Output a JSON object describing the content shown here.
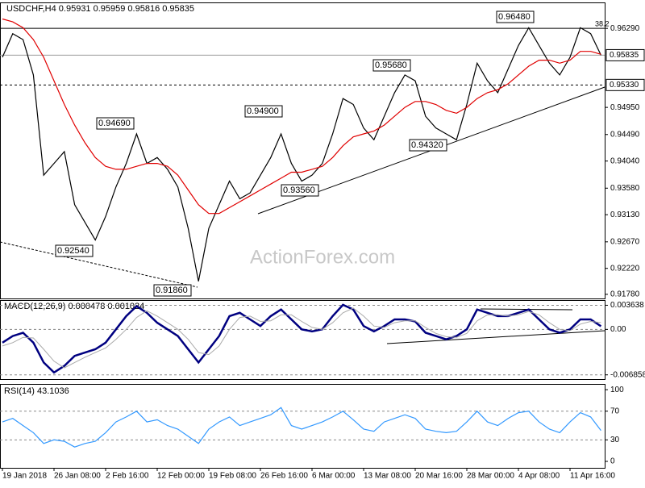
{
  "chart_data": [
    {
      "type": "line",
      "title": "USDCHF,H4 0.95931 0.95959 0.95816 0.95835",
      "watermark": "ActionForex.com",
      "categories": [
        "19 Jan 2018",
        null,
        null,
        null,
        null,
        "26 Jan 08:00",
        null,
        null,
        null,
        null,
        "2 Feb 16:00",
        null,
        null,
        null,
        null,
        "12 Feb 00:00",
        null,
        null,
        null,
        null,
        "19 Feb 08:00",
        null,
        null,
        null,
        null,
        "26 Feb 16:00",
        null,
        null,
        null,
        null,
        "6 Mar 00:00",
        null,
        null,
        null,
        null,
        "13 Mar 08:00",
        null,
        null,
        null,
        null,
        "20 Mar 16:00",
        null,
        null,
        null,
        null,
        "28 Mar 00:00",
        null,
        null,
        null,
        null,
        "4 Apr 08:00",
        null,
        null,
        null,
        null,
        "11 Apr 16:00",
        null,
        null,
        null
      ],
      "series": [
        {
          "color": "#000000",
          "values": [
            0.958,
            0.962,
            0.961,
            0.955,
            0.938,
            0.94,
            0.942,
            0.933,
            0.93,
            0.927,
            0.931,
            0.936,
            0.94,
            0.945,
            0.94,
            0.941,
            0.939,
            0.936,
            0.929,
            0.92,
            0.929,
            0.933,
            0.937,
            0.934,
            0.935,
            0.938,
            0.941,
            0.945,
            0.94,
            0.937,
            0.938,
            0.94,
            0.945,
            0.951,
            0.95,
            0.946,
            0.944,
            0.948,
            0.952,
            0.955,
            0.954,
            0.948,
            0.946,
            0.945,
            0.944,
            0.95,
            0.957,
            0.954,
            0.952,
            0.956,
            0.96,
            0.963,
            0.96,
            0.957,
            0.955,
            0.958,
            0.963,
            0.962,
            0.95835
          ]
        },
        {
          "color": "#e00000",
          "values": [
            0.9645,
            0.964,
            0.963,
            0.961,
            0.958,
            0.954,
            0.95,
            0.9465,
            0.9435,
            0.941,
            0.9395,
            0.939,
            0.939,
            0.9395,
            0.94,
            0.94,
            0.9395,
            0.938,
            0.9355,
            0.933,
            0.9315,
            0.9315,
            0.9325,
            0.9335,
            0.9345,
            0.9355,
            0.9365,
            0.9375,
            0.9385,
            0.9385,
            0.939,
            0.9395,
            0.941,
            0.943,
            0.9445,
            0.945,
            0.9455,
            0.9465,
            0.948,
            0.9495,
            0.9505,
            0.9505,
            0.95,
            0.949,
            0.9485,
            0.9495,
            0.951,
            0.952,
            0.9525,
            0.9535,
            0.955,
            0.9565,
            0.9575,
            0.9575,
            0.957,
            0.9575,
            0.959,
            0.959,
            0.9585
          ]
        }
      ],
      "ylim": [
        0.9171,
        0.9673
      ],
      "yticks": [
        {
          "value": 0.9629,
          "label": "0.96290"
        },
        {
          "value": 0.9495,
          "label": "0.94950"
        },
        {
          "value": 0.9449,
          "label": "0.94490"
        },
        {
          "value": 0.9404,
          "label": "0.94040"
        },
        {
          "value": 0.9358,
          "label": "0.93580"
        },
        {
          "value": 0.9313,
          "label": "0.93130"
        },
        {
          "value": 0.9267,
          "label": "0.92670"
        },
        {
          "value": 0.9222,
          "label": "0.92220"
        },
        {
          "value": 0.9178,
          "label": "0.91780"
        }
      ],
      "levels": [
        {
          "value": 0.95835,
          "label": "0.95835"
        },
        {
          "value": 0.9533,
          "label": "0.95330"
        }
      ],
      "annotations": [
        "0.96480",
        "0.95680",
        "0.94900",
        "0.94690",
        "0.94320",
        "0.93560",
        "0.92540",
        "0.91860",
        "38.2"
      ]
    },
    {
      "type": "line",
      "title": "MACD(12,26,9) 0.000478 0.001024",
      "series": [
        {
          "color": "#000080",
          "values": [
            -0.002,
            -0.001,
            -0.0005,
            -0.002,
            -0.005,
            -0.0065,
            -0.0055,
            -0.004,
            -0.0035,
            -0.003,
            -0.002,
            0.0,
            0.002,
            0.0035,
            0.0025,
            0.001,
            0.0,
            -0.001,
            -0.003,
            -0.005,
            -0.003,
            -0.001,
            0.002,
            0.0025,
            0.0015,
            0.0005,
            0.002,
            0.003,
            0.0015,
            0.0,
            -0.0003,
            0.0,
            0.002,
            0.0037,
            0.003,
            0.0005,
            -0.0003,
            0.0005,
            0.0015,
            0.0015,
            0.0012,
            -0.0005,
            -0.001,
            -0.0015,
            -0.001,
            0.0,
            0.003,
            0.0025,
            0.002,
            0.002,
            0.0025,
            0.003,
            0.0015,
            0.0,
            -0.0005,
            0.0,
            0.0015,
            0.0015,
            0.000478
          ]
        },
        {
          "color": "#aaaaaa",
          "values": [
            -0.0025,
            -0.002,
            -0.0012,
            -0.0013,
            -0.003,
            -0.0048,
            -0.0058,
            -0.005,
            -0.0042,
            -0.0035,
            -0.0028,
            -0.0015,
            0.0,
            0.0018,
            0.0028,
            0.002,
            0.001,
            0.0,
            -0.0015,
            -0.0035,
            -0.0038,
            -0.0025,
            0.0,
            0.0018,
            0.002,
            0.0012,
            0.0013,
            0.0022,
            0.0022,
            0.0012,
            0.0003,
            0.0,
            0.001,
            0.0025,
            0.0032,
            0.002,
            0.0005,
            0.0003,
            0.001,
            0.0013,
            0.0013,
            0.0003,
            -0.0006,
            -0.0011,
            -0.0012,
            -0.0006,
            0.0013,
            0.0022,
            0.0022,
            0.002,
            0.0022,
            0.0027,
            0.0022,
            0.001,
            0.0,
            -0.0002,
            0.0008,
            0.0012,
            0.001024
          ]
        }
      ],
      "ylim": [
        -0.0075,
        0.0043
      ],
      "yticks": [
        0.003638,
        {
          "value": 0,
          "label": "0.00"
        },
        -0.006858
      ]
    },
    {
      "type": "line",
      "title": "RSI(14) 43.1036",
      "series": [
        {
          "color": "#3399ff",
          "values": [
            55,
            60,
            50,
            40,
            25,
            30,
            28,
            20,
            25,
            28,
            40,
            55,
            62,
            70,
            55,
            58,
            50,
            45,
            35,
            25,
            45,
            55,
            62,
            50,
            55,
            60,
            65,
            75,
            50,
            45,
            50,
            55,
            62,
            70,
            58,
            45,
            42,
            55,
            60,
            65,
            60,
            45,
            42,
            40,
            42,
            55,
            70,
            55,
            50,
            60,
            68,
            70,
            55,
            45,
            40,
            55,
            68,
            62,
            43.1036
          ]
        }
      ],
      "ylim": [
        -9,
        108
      ],
      "yticks": [
        100,
        70,
        30,
        0
      ]
    }
  ]
}
